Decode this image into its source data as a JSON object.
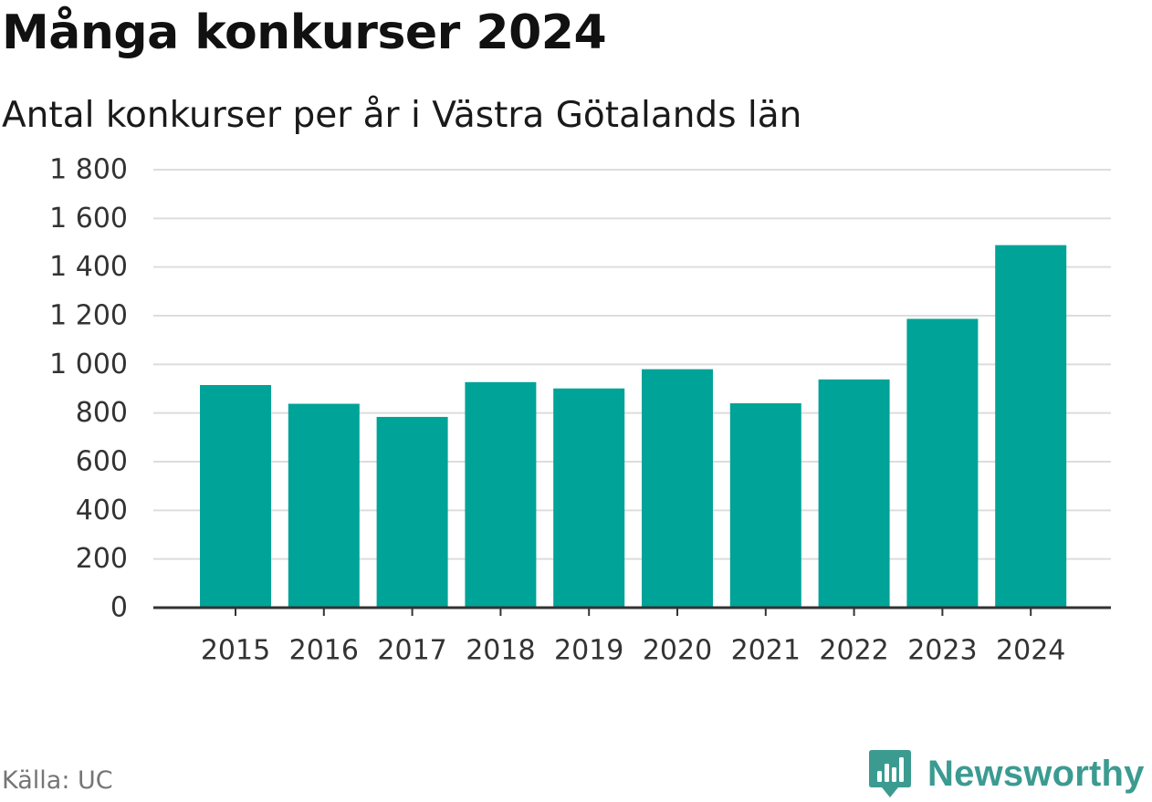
{
  "header": {
    "title": "Många konkurser 2024",
    "subtitle": "Antal konkurser per år i Västra Götalands län"
  },
  "footer": {
    "source": "Källa: UC",
    "brand": "Newsworthy"
  },
  "colors": {
    "bar": "#00a398",
    "grid": "#dddddd",
    "axis": "#333333",
    "brand": "#3b9b91"
  },
  "chart_data": {
    "type": "bar",
    "title": "Många konkurser 2024",
    "subtitle": "Antal konkurser per år i Västra Götalands län",
    "categories": [
      "2015",
      "2016",
      "2017",
      "2018",
      "2019",
      "2020",
      "2021",
      "2022",
      "2023",
      "2024"
    ],
    "values": [
      915,
      838,
      784,
      927,
      901,
      980,
      840,
      938,
      1187,
      1490
    ],
    "ylim": [
      0,
      1800
    ],
    "yticks": [
      0,
      200,
      400,
      600,
      800,
      1000,
      1200,
      1400,
      1600,
      1800
    ],
    "ytick_labels": [
      "0",
      "200",
      "400",
      "600",
      "800",
      "1 000",
      "1 200",
      "1 400",
      "1 600",
      "1 800"
    ],
    "xlabel": "",
    "ylabel": "",
    "grid": true,
    "legend": "none"
  }
}
